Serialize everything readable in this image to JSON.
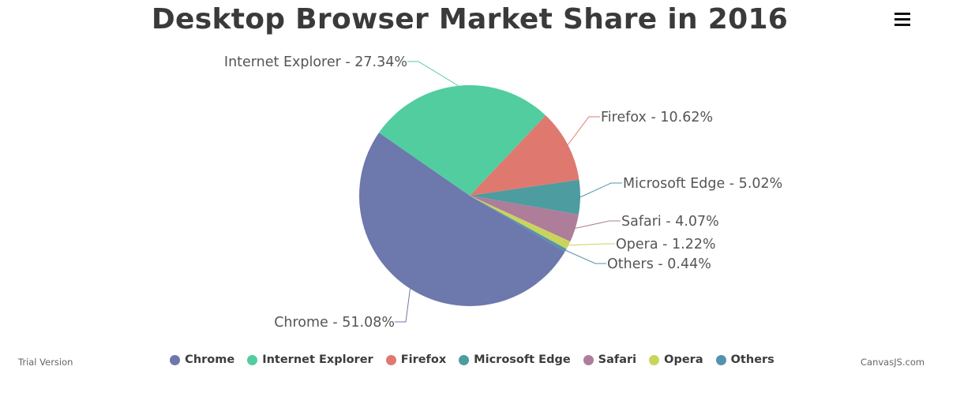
{
  "chart_data": {
    "type": "pie",
    "title": "Desktop Browser Market Share in 2016",
    "label_format": "{name} - {value}%",
    "slices": [
      {
        "name": "Chrome",
        "value": 51.08,
        "color": "#6d78ad"
      },
      {
        "name": "Internet Explorer",
        "value": 27.34,
        "color": "#51cda0"
      },
      {
        "name": "Firefox",
        "value": 10.62,
        "color": "#df7970"
      },
      {
        "name": "Microsoft Edge",
        "value": 5.02,
        "color": "#4c9ca0"
      },
      {
        "name": "Safari",
        "value": 4.07,
        "color": "#ae7d99"
      },
      {
        "name": "Opera",
        "value": 1.22,
        "color": "#c9d45c"
      },
      {
        "name": "Others",
        "value": 0.44,
        "color": "#5592ad"
      }
    ],
    "legend_placement": "bottom"
  },
  "menu_icon": "hamburger-menu-icon",
  "footer": {
    "trial_text": "Trial Version",
    "credit": "CanvasJS.com"
  }
}
